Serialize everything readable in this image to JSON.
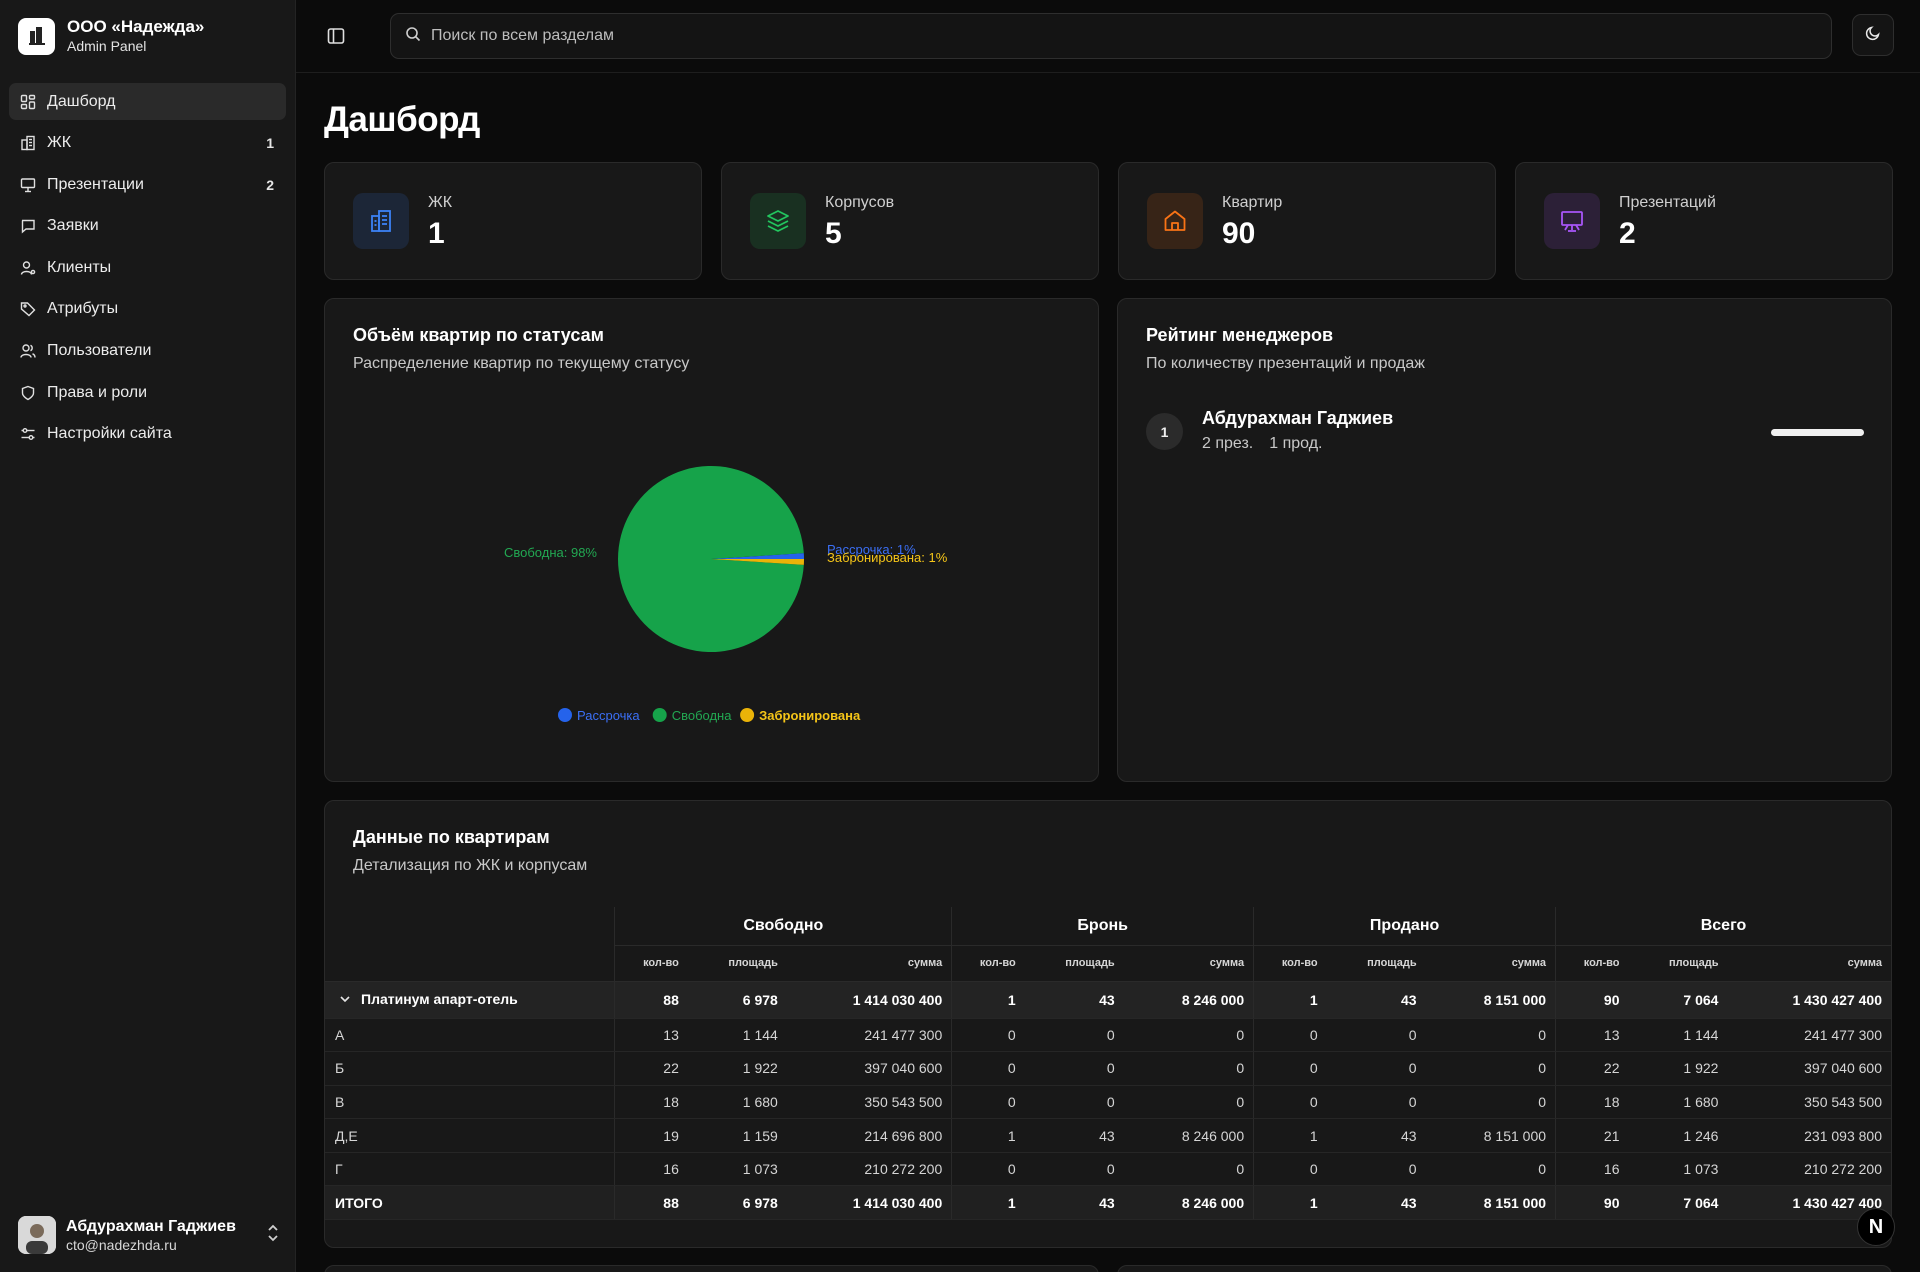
{
  "brand": {
    "name": "ООО «Надежда»",
    "subtitle": "Admin Panel"
  },
  "nav": [
    {
      "label": "Дашборд",
      "icon": "dashboard-icon",
      "active": true
    },
    {
      "label": "ЖК",
      "icon": "building-icon",
      "count": "1"
    },
    {
      "label": "Презентации",
      "icon": "presentation-icon",
      "count": "2"
    },
    {
      "label": "Заявки",
      "icon": "message-icon"
    },
    {
      "label": "Клиенты",
      "icon": "client-icon"
    },
    {
      "label": "Атрибуты",
      "icon": "tag-icon"
    },
    {
      "label": "Пользователи",
      "icon": "users-icon"
    },
    {
      "label": "Права и роли",
      "icon": "shield-icon"
    },
    {
      "label": "Настройки сайта",
      "icon": "settings-icon"
    }
  ],
  "user": {
    "name": "Абдурахман Гаджиев",
    "email": "cto@nadezhda.ru"
  },
  "search": {
    "placeholder": "Поиск по всем разделам"
  },
  "page": {
    "title": "Дашборд"
  },
  "stats": [
    {
      "label": "ЖК",
      "value": "1",
      "color": "#3b82f6",
      "icon": "building-icon"
    },
    {
      "label": "Корпусов",
      "value": "5",
      "color": "#22c55e",
      "icon": "layers-icon"
    },
    {
      "label": "Квартир",
      "value": "90",
      "color": "#f97316",
      "icon": "home-icon"
    },
    {
      "label": "Презентаций",
      "value": "2",
      "color": "#a855f7",
      "icon": "presentation-icon"
    }
  ],
  "pie_card": {
    "title": "Объём квартир по статусам",
    "subtitle": "Распределение квартир по текущему статусу"
  },
  "chart_data": {
    "type": "pie",
    "slices": [
      {
        "name": "Рассрочка",
        "value": 1,
        "label": "Рассрочка: 1%",
        "color": "#2563eb"
      },
      {
        "name": "Свободна",
        "value": 98,
        "label": "Свободна: 98%",
        "color": "#16a34a"
      },
      {
        "name": "Забронирована",
        "value": 1,
        "label": "Забронирована: 1%",
        "color": "#eab308"
      }
    ],
    "legend": [
      "Рассрочка",
      "Свободна",
      "Забронирована"
    ],
    "legend_position": "bottom"
  },
  "rating": {
    "title": "Рейтинг менеджеров",
    "subtitle": "По количеству презентаций и продаж",
    "managers": [
      {
        "rank": "1",
        "name": "Абдурахман Гаджиев",
        "presentations": "2 през.",
        "sales": "1 прод.",
        "share": 1.0
      }
    ]
  },
  "table": {
    "title": "Данные по квартирам",
    "subtitle": "Детализация по ЖК и корпусам",
    "groups": [
      "Свободно",
      "Бронь",
      "Продано",
      "Всего"
    ],
    "subcols": [
      "кол-во",
      "площадь",
      "сумма"
    ],
    "rows": [
      {
        "name": "Платинум апарт-отель",
        "type": "parent",
        "values": [
          "88",
          "6 978",
          "1 414 030 400",
          "1",
          "43",
          "8 246 000",
          "1",
          "43",
          "8 151 000",
          "90",
          "7 064",
          "1 430 427 400"
        ]
      },
      {
        "name": "А",
        "type": "child",
        "values": [
          "13",
          "1 144",
          "241 477 300",
          "0",
          "0",
          "0",
          "0",
          "0",
          "0",
          "13",
          "1 144",
          "241 477 300"
        ]
      },
      {
        "name": "Б",
        "type": "child",
        "values": [
          "22",
          "1 922",
          "397 040 600",
          "0",
          "0",
          "0",
          "0",
          "0",
          "0",
          "22",
          "1 922",
          "397 040 600"
        ]
      },
      {
        "name": "В",
        "type": "child",
        "values": [
          "18",
          "1 680",
          "350 543 500",
          "0",
          "0",
          "0",
          "0",
          "0",
          "0",
          "18",
          "1 680",
          "350 543 500"
        ]
      },
      {
        "name": "Д,Е",
        "type": "child",
        "values": [
          "19",
          "1 159",
          "214 696 800",
          "1",
          "43",
          "8 246 000",
          "1",
          "43",
          "8 151 000",
          "21",
          "1 246",
          "231 093 800"
        ]
      },
      {
        "name": "Г",
        "type": "child",
        "values": [
          "16",
          "1 073",
          "210 272 200",
          "0",
          "0",
          "0",
          "0",
          "0",
          "0",
          "16",
          "1 073",
          "210 272 200"
        ]
      },
      {
        "name": "ИТОГО",
        "type": "total",
        "values": [
          "88",
          "6 978",
          "1 414 030 400",
          "1",
          "43",
          "8 246 000",
          "1",
          "43",
          "8 151 000",
          "90",
          "7 064",
          "1 430 427 400"
        ]
      }
    ]
  },
  "badge": {
    "text": "N"
  }
}
